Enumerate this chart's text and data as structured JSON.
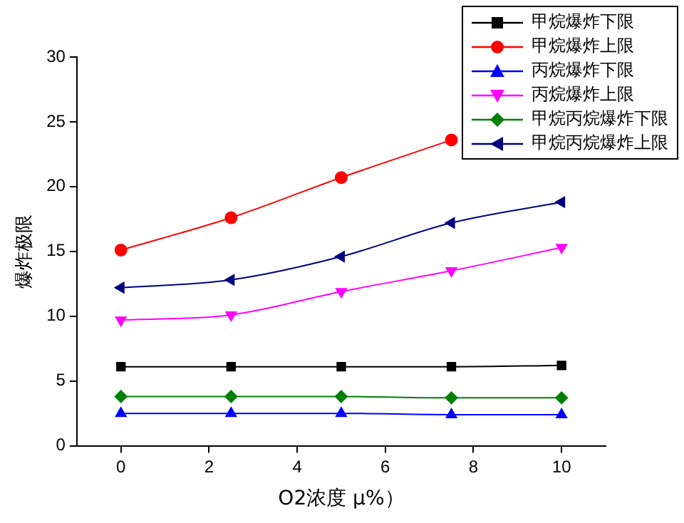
{
  "chart_data": {
    "type": "line",
    "xlabel": "O2浓度 μ%）",
    "ylabel": "爆炸极限",
    "x": [
      0,
      2.5,
      5,
      7.5,
      10
    ],
    "xlim": [
      -1,
      11
    ],
    "xticks": [
      0,
      2,
      4,
      6,
      8,
      10
    ],
    "ylim": [
      0,
      30
    ],
    "yticks": [
      0,
      5,
      10,
      15,
      20,
      25,
      30
    ],
    "grid": false,
    "legend": "top right",
    "series": [
      {
        "name": "甲烷爆炸下限",
        "color": "#000000",
        "marker": "square",
        "values": [
          6.1,
          6.1,
          6.1,
          6.1,
          6.2
        ]
      },
      {
        "name": "甲烷爆炸上限",
        "color": "#ff0000",
        "marker": "circle",
        "values": [
          15.1,
          17.6,
          20.7,
          23.6,
          null
        ]
      },
      {
        "name": "丙烷爆炸下限",
        "color": "#0000ff",
        "marker": "triangle",
        "values": [
          2.5,
          2.5,
          2.5,
          2.4,
          2.4
        ]
      },
      {
        "name": "丙烷爆炸上限",
        "color": "#ff00ff",
        "marker": "triangle-down",
        "values": [
          9.7,
          10.1,
          11.9,
          13.5,
          15.3
        ]
      },
      {
        "name": "甲烷丙烷爆炸下限",
        "color": "#008000",
        "marker": "diamond",
        "values": [
          3.8,
          3.8,
          3.8,
          3.7,
          3.7
        ]
      },
      {
        "name": "甲烷丙烷爆炸上限",
        "color": "#000080",
        "marker": "triangle-left",
        "values": [
          12.2,
          12.8,
          14.6,
          17.2,
          18.8
        ]
      }
    ]
  }
}
